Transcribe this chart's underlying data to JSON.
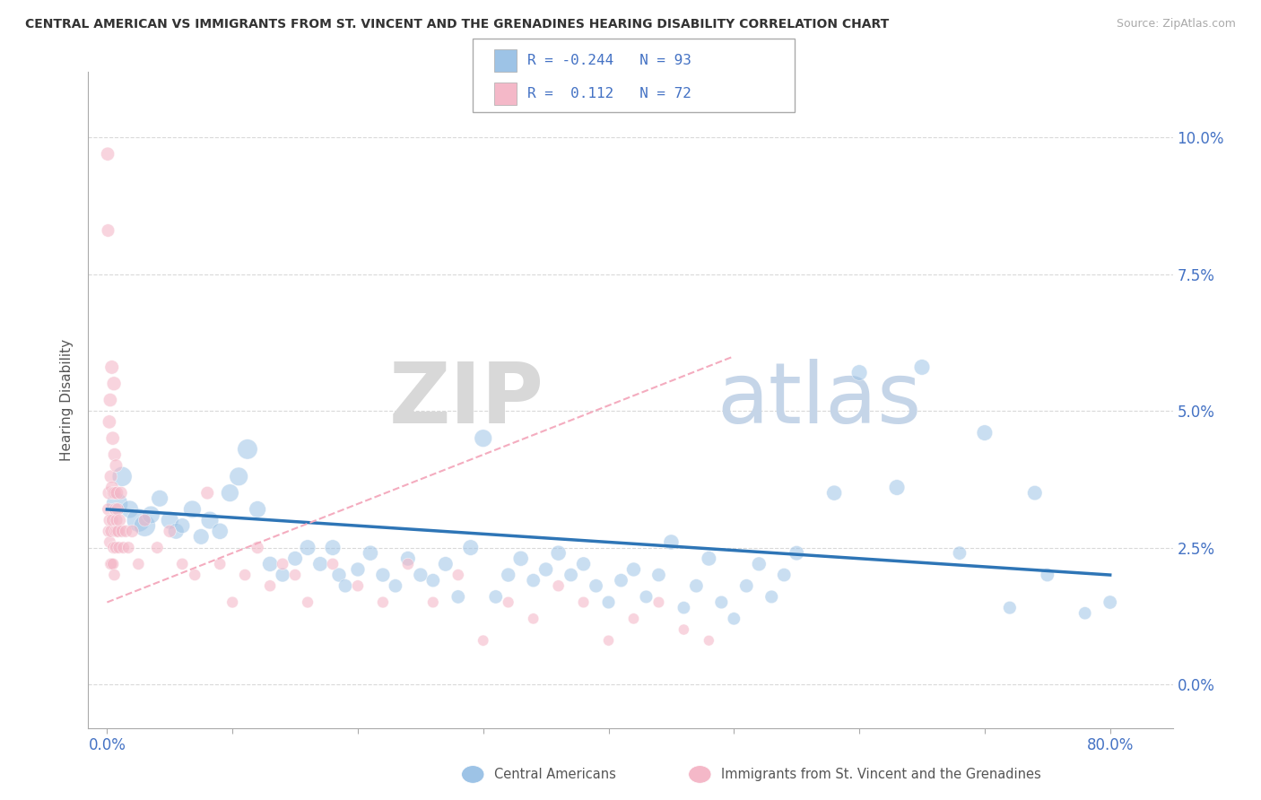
{
  "title": "CENTRAL AMERICAN VS IMMIGRANTS FROM ST. VINCENT AND THE GRENADINES HEARING DISABILITY CORRELATION CHART",
  "source": "Source: ZipAtlas.com",
  "ylabel": "Hearing Disability",
  "ytick_vals": [
    0.0,
    2.5,
    5.0,
    7.5,
    10.0
  ],
  "ytick_labels": [
    "0.0%",
    "2.5%",
    "5.0%",
    "7.5%",
    "10.0%"
  ],
  "xtick_vals": [
    0.0,
    10.0,
    20.0,
    30.0,
    40.0,
    50.0,
    60.0,
    70.0,
    80.0
  ],
  "xtick_labels": [
    "0.0%",
    "",
    "",
    "",
    "",
    "",
    "",
    "",
    "80.0%"
  ],
  "ylim": [
    -0.8,
    11.2
  ],
  "xlim": [
    -1.5,
    85.0
  ],
  "color_blue": "#9dc3e6",
  "color_pink": "#f4b8c8",
  "color_trend_blue": "#2e75b6",
  "color_trend_pink": "#f4acbf",
  "background_color": "#ffffff",
  "grid_color": "#d9d9d9",
  "blue_scatter_x": [
    0.8,
    1.2,
    1.8,
    2.5,
    3.0,
    3.5,
    4.2,
    5.0,
    5.5,
    6.0,
    6.8,
    7.5,
    8.2,
    9.0,
    9.8,
    10.5,
    11.2,
    12.0,
    13.0,
    14.0,
    15.0,
    16.0,
    17.0,
    18.0,
    18.5,
    19.0,
    20.0,
    21.0,
    22.0,
    23.0,
    24.0,
    25.0,
    26.0,
    27.0,
    28.0,
    29.0,
    30.0,
    31.0,
    32.0,
    33.0,
    34.0,
    35.0,
    36.0,
    37.0,
    38.0,
    39.0,
    40.0,
    41.0,
    42.0,
    43.0,
    44.0,
    45.0,
    46.0,
    47.0,
    48.0,
    49.0,
    50.0,
    51.0,
    52.0,
    53.0,
    54.0,
    55.0,
    58.0,
    60.0,
    63.0,
    65.0,
    68.0,
    70.0,
    72.0,
    74.0,
    75.0,
    78.0,
    80.0
  ],
  "blue_scatter_y": [
    3.3,
    3.8,
    3.2,
    3.0,
    2.9,
    3.1,
    3.4,
    3.0,
    2.8,
    2.9,
    3.2,
    2.7,
    3.0,
    2.8,
    3.5,
    3.8,
    4.3,
    3.2,
    2.2,
    2.0,
    2.3,
    2.5,
    2.2,
    2.5,
    2.0,
    1.8,
    2.1,
    2.4,
    2.0,
    1.8,
    2.3,
    2.0,
    1.9,
    2.2,
    1.6,
    2.5,
    4.5,
    1.6,
    2.0,
    2.3,
    1.9,
    2.1,
    2.4,
    2.0,
    2.2,
    1.8,
    1.5,
    1.9,
    2.1,
    1.6,
    2.0,
    2.6,
    1.4,
    1.8,
    2.3,
    1.5,
    1.2,
    1.8,
    2.2,
    1.6,
    2.0,
    2.4,
    3.5,
    5.7,
    3.6,
    5.8,
    2.4,
    4.6,
    1.4,
    3.5,
    2.0,
    1.3,
    1.5
  ],
  "blue_scatter_size": [
    300,
    250,
    200,
    350,
    300,
    200,
    180,
    200,
    160,
    150,
    200,
    160,
    200,
    170,
    200,
    220,
    260,
    180,
    150,
    130,
    140,
    160,
    140,
    160,
    130,
    120,
    130,
    150,
    130,
    120,
    140,
    130,
    120,
    140,
    120,
    160,
    200,
    120,
    130,
    150,
    120,
    130,
    150,
    120,
    130,
    120,
    110,
    120,
    130,
    110,
    120,
    150,
    105,
    120,
    140,
    110,
    105,
    120,
    130,
    110,
    120,
    140,
    150,
    160,
    160,
    160,
    120,
    160,
    110,
    140,
    120,
    105,
    120
  ],
  "pink_scatter_x": [
    0.05,
    0.08,
    0.1,
    0.12,
    0.15,
    0.18,
    0.2,
    0.22,
    0.25,
    0.28,
    0.3,
    0.32,
    0.35,
    0.38,
    0.4,
    0.42,
    0.45,
    0.48,
    0.5,
    0.52,
    0.55,
    0.58,
    0.6,
    0.62,
    0.65,
    0.68,
    0.7,
    0.72,
    0.75,
    0.78,
    0.8,
    0.85,
    0.9,
    0.95,
    1.0,
    1.1,
    1.2,
    1.3,
    1.5,
    1.7,
    2.0,
    2.5,
    3.0,
    4.0,
    5.0,
    6.0,
    7.0,
    8.0,
    9.0,
    10.0,
    11.0,
    12.0,
    13.0,
    14.0,
    15.0,
    16.0,
    18.0,
    20.0,
    22.0,
    24.0,
    26.0,
    28.0,
    30.0,
    32.0,
    34.0,
    36.0,
    38.0,
    40.0,
    42.0,
    44.0,
    46.0,
    48.0
  ],
  "pink_scatter_y": [
    9.7,
    8.3,
    3.2,
    2.8,
    3.5,
    4.8,
    3.0,
    2.6,
    5.2,
    2.2,
    3.8,
    2.8,
    2.2,
    5.8,
    3.6,
    3.0,
    4.5,
    2.2,
    3.5,
    2.5,
    5.5,
    2.0,
    4.2,
    3.5,
    2.8,
    3.2,
    2.5,
    4.0,
    3.0,
    3.5,
    2.8,
    3.2,
    2.8,
    2.5,
    3.0,
    3.5,
    2.8,
    2.5,
    2.8,
    2.5,
    2.8,
    2.2,
    3.0,
    2.5,
    2.8,
    2.2,
    2.0,
    3.5,
    2.2,
    1.5,
    2.0,
    2.5,
    1.8,
    2.2,
    2.0,
    1.5,
    2.2,
    1.8,
    1.5,
    2.2,
    1.5,
    2.0,
    0.8,
    1.5,
    1.2,
    1.8,
    1.5,
    0.8,
    1.2,
    1.5,
    1.0,
    0.8
  ],
  "pink_scatter_size": [
    120,
    110,
    100,
    95,
    110,
    120,
    100,
    95,
    120,
    90,
    110,
    100,
    90,
    125,
    110,
    100,
    120,
    90,
    110,
    100,
    130,
    90,
    115,
    105,
    95,
    110,
    95,
    110,
    100,
    110,
    100,
    105,
    100,
    95,
    105,
    110,
    100,
    95,
    100,
    95,
    105,
    90,
    100,
    95,
    105,
    90,
    88,
    110,
    90,
    85,
    90,
    100,
    88,
    92,
    90,
    85,
    90,
    88,
    85,
    90,
    82,
    88,
    78,
    82,
    78,
    88,
    82,
    75,
    78,
    82,
    75,
    72
  ]
}
